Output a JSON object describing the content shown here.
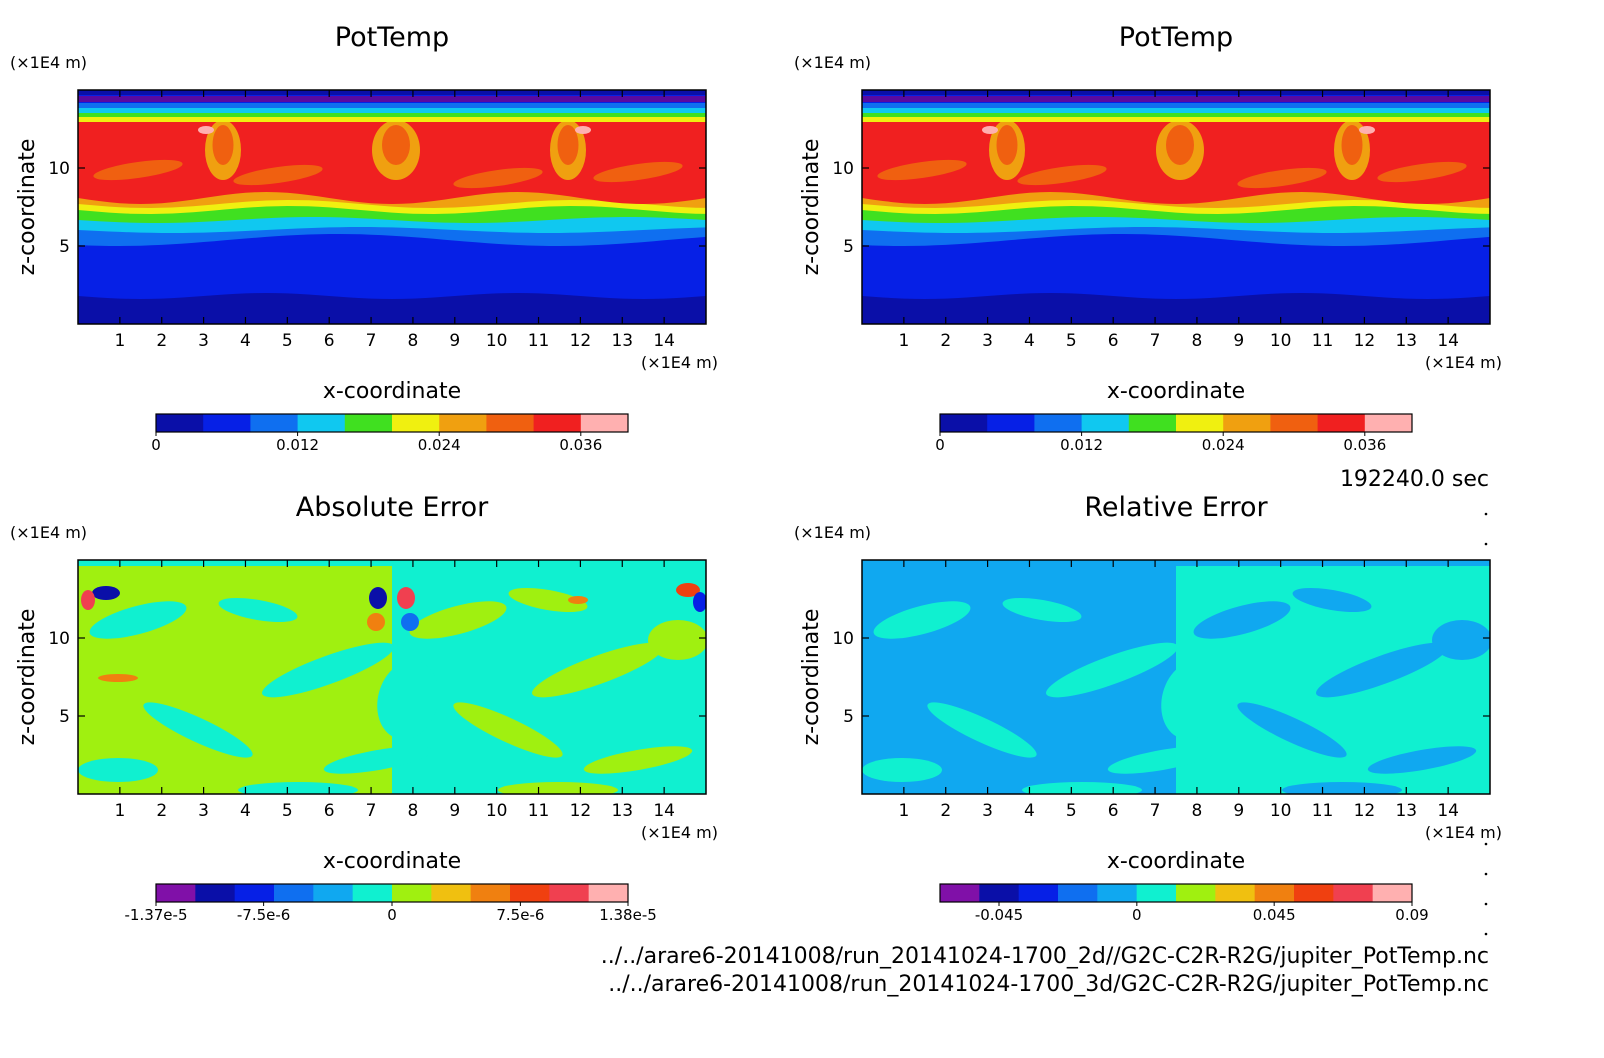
{
  "chart_data": [
    {
      "type": "heatmap",
      "title": "PotTemp",
      "xlabel": "x-coordinate",
      "ylabel": "z-coordinate",
      "x_unit": "(×1E4 m)",
      "y_unit": "(×1E4 m)",
      "xlim": [
        0,
        15
      ],
      "ylim": [
        0,
        15
      ],
      "x_ticks": [
        "1",
        "2",
        "3",
        "4",
        "5",
        "6",
        "7",
        "8",
        "9",
        "10",
        "11",
        "12",
        "13",
        "14"
      ],
      "y_ticks": [
        "5",
        "10"
      ],
      "colorbar": {
        "colors": [
          "#0a0fa8",
          "#0620e6",
          "#0f6ff0",
          "#10c8f0",
          "#40e020",
          "#f0f010",
          "#f0a010",
          "#f06010",
          "#f02020",
          "#ffb0b0"
        ],
        "labels": [
          "0",
          "0.012",
          "0.024",
          "0.036"
        ],
        "range": [
          0,
          0.04
        ]
      },
      "field": "potential-temperature"
    },
    {
      "type": "heatmap",
      "title": "PotTemp",
      "xlabel": "x-coordinate",
      "ylabel": "z-coordinate",
      "x_unit": "(×1E4 m)",
      "y_unit": "(×1E4 m)",
      "xlim": [
        0,
        15
      ],
      "ylim": [
        0,
        15
      ],
      "x_ticks": [
        "1",
        "2",
        "3",
        "4",
        "5",
        "6",
        "7",
        "8",
        "9",
        "10",
        "11",
        "12",
        "13",
        "14"
      ],
      "y_ticks": [
        "5",
        "10"
      ],
      "colorbar": {
        "colors": [
          "#0a0fa8",
          "#0620e6",
          "#0f6ff0",
          "#10c8f0",
          "#40e020",
          "#f0f010",
          "#f0a010",
          "#f06010",
          "#f02020",
          "#ffb0b0"
        ],
        "labels": [
          "0",
          "0.012",
          "0.024",
          "0.036"
        ],
        "range": [
          0,
          0.04
        ]
      },
      "field": "potential-temperature"
    },
    {
      "type": "heatmap",
      "title": "Absolute Error",
      "xlabel": "x-coordinate",
      "ylabel": "z-coordinate",
      "x_unit": "(×1E4 m)",
      "y_unit": "(×1E4 m)",
      "xlim": [
        0,
        15
      ],
      "ylim": [
        0,
        15
      ],
      "x_ticks": [
        "1",
        "2",
        "3",
        "4",
        "5",
        "6",
        "7",
        "8",
        "9",
        "10",
        "11",
        "12",
        "13",
        "14"
      ],
      "y_ticks": [
        "5",
        "10"
      ],
      "colorbar": {
        "colors": [
          "#8010a8",
          "#0a0fa8",
          "#0620e6",
          "#0f6ff0",
          "#10a8f0",
          "#10f0d0",
          "#a0f010",
          "#f0c010",
          "#f08010",
          "#f04010",
          "#f04050",
          "#ffb0b0"
        ],
        "labels": [
          "-1.37e-5",
          "-7.5e-6",
          "0",
          "7.5e-6",
          "1.38e-5"
        ]
      },
      "field": "absolute-error"
    },
    {
      "type": "heatmap",
      "title": "Relative Error",
      "xlabel": "x-coordinate",
      "ylabel": "z-coordinate",
      "x_unit": "(×1E4 m)",
      "y_unit": "(×1E4 m)",
      "xlim": [
        0,
        15
      ],
      "ylim": [
        0,
        15
      ],
      "x_ticks": [
        "1",
        "2",
        "3",
        "4",
        "5",
        "6",
        "7",
        "8",
        "9",
        "10",
        "11",
        "12",
        "13",
        "14"
      ],
      "y_ticks": [
        "5",
        "10"
      ],
      "colorbar": {
        "colors": [
          "#8010a8",
          "#0a0fa8",
          "#0620e6",
          "#0f6ff0",
          "#10a8f0",
          "#10f0d0",
          "#a0f010",
          "#f0c010",
          "#f08010",
          "#f04010",
          "#f04050",
          "#ffb0b0"
        ],
        "labels": [
          "-0.045",
          "0",
          "0.045",
          "0.09"
        ]
      },
      "field": "relative-error"
    }
  ],
  "time_label": "192240.0 sec",
  "file_paths": [
    "../../arare6-20141008/run_20141024-1700_2d//G2C-C2R-R2G/jupiter_PotTemp.nc",
    "../../arare6-20141008/run_20141024-1700_3d/G2C-C2R-R2G/jupiter_PotTemp.nc"
  ]
}
